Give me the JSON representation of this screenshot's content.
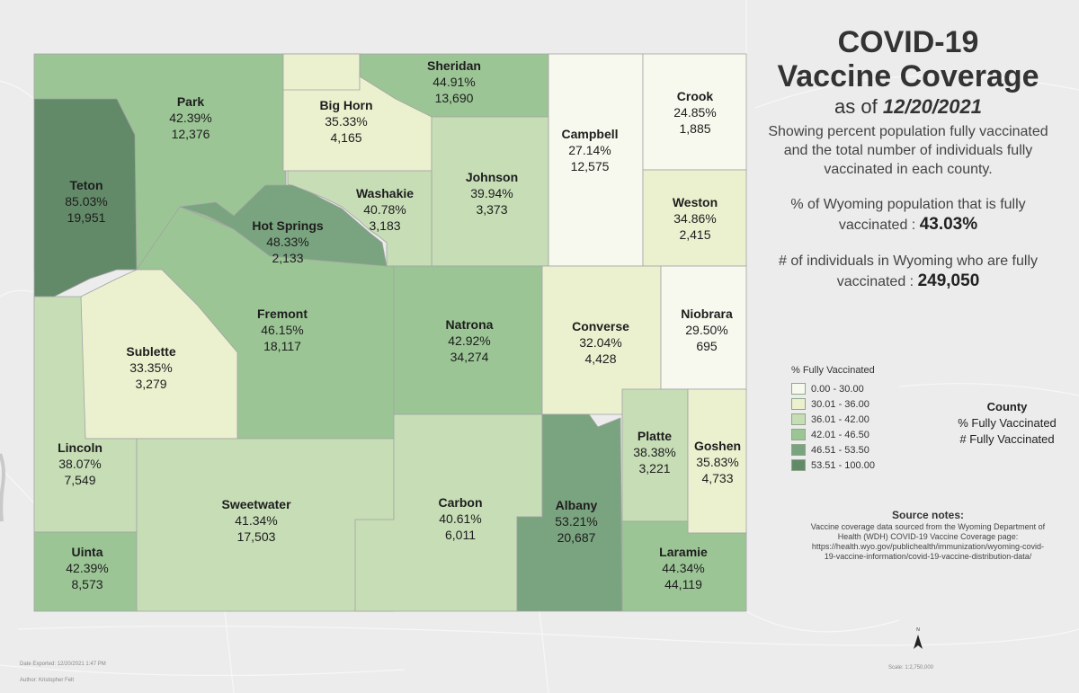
{
  "title": "COVID-19\nVaccine Coverage",
  "as_of_prefix": "as of",
  "as_of_date": "12/20/2021",
  "description": "Showing percent population fully vaccinated and the total number of individuals fully vaccinated in each county.",
  "stat_pct_label": "% of Wyoming population that is fully vaccinated :",
  "stat_pct_value": "43.03%",
  "stat_count_label": "# of individuals in Wyoming who are fully vaccinated :",
  "stat_count_value": "249,050",
  "legend": {
    "title": "% Fully Vaccinated",
    "classes": [
      {
        "label": "0.00 - 30.00",
        "color": "#f8f9ee"
      },
      {
        "label": "30.01 - 36.00",
        "color": "#ebf1cf"
      },
      {
        "label": "36.01 - 42.00",
        "color": "#c6ddb6"
      },
      {
        "label": "42.01 - 46.50",
        "color": "#9cc596"
      },
      {
        "label": "46.51 - 53.50",
        "color": "#7aa37f"
      },
      {
        "label": "53.51 - 100.00",
        "color": "#628a69"
      }
    ]
  },
  "county_key": {
    "line1": "County",
    "line2": "% Fully Vaccinated",
    "line3": "# Fully Vaccinated"
  },
  "source": {
    "title": "Source notes:",
    "text": "Vaccine coverage data sourced from the Wyoming Department of Health (WDH) COVID-19 Vaccine Coverage page: https://health.wyo.gov/publichealth/immunization/wyoming-covid-19-vaccine-information/covid-19-vaccine-distribution-data/"
  },
  "footer": {
    "date_exported": "Date Exported: 12/20/2021 1:47 PM",
    "author": "Author: Kristopher Felt",
    "scale": "Scale: 1:2,750,000",
    "north": "N"
  },
  "counties": [
    {
      "id": "park",
      "name": "Park",
      "pct": "42.39%",
      "count": "12,376",
      "color": "#9cc596"
    },
    {
      "id": "big-horn",
      "name": "Big Horn",
      "pct": "35.33%",
      "count": "4,165",
      "color": "#ebf1cf"
    },
    {
      "id": "sheridan",
      "name": "Sheridan",
      "pct": "44.91%",
      "count": "13,690",
      "color": "#9cc596"
    },
    {
      "id": "campbell",
      "name": "Campbell",
      "pct": "27.14%",
      "count": "12,575",
      "color": "#f8f9ee"
    },
    {
      "id": "crook",
      "name": "Crook",
      "pct": "24.85%",
      "count": "1,885",
      "color": "#f8f9ee"
    },
    {
      "id": "teton",
      "name": "Teton",
      "pct": "85.03%",
      "count": "19,951",
      "color": "#628a69"
    },
    {
      "id": "johnson",
      "name": "Johnson",
      "pct": "39.94%",
      "count": "3,373",
      "color": "#c6ddb6"
    },
    {
      "id": "washakie",
      "name": "Washakie",
      "pct": "40.78%",
      "count": "3,183",
      "color": "#c6ddb6"
    },
    {
      "id": "hot-springs",
      "name": "Hot Springs",
      "pct": "48.33%",
      "count": "2,133",
      "color": "#7aa37f"
    },
    {
      "id": "weston",
      "name": "Weston",
      "pct": "34.86%",
      "count": "2,415",
      "color": "#ebf1cf"
    },
    {
      "id": "fremont",
      "name": "Fremont",
      "pct": "46.15%",
      "count": "18,117",
      "color": "#9cc596"
    },
    {
      "id": "natrona",
      "name": "Natrona",
      "pct": "42.92%",
      "count": "34,274",
      "color": "#9cc596"
    },
    {
      "id": "converse",
      "name": "Converse",
      "pct": "32.04%",
      "count": "4,428",
      "color": "#ebf1cf"
    },
    {
      "id": "niobrara",
      "name": "Niobrara",
      "pct": "29.50%",
      "count": "695",
      "color": "#f8f9ee"
    },
    {
      "id": "sublette",
      "name": "Sublette",
      "pct": "33.35%",
      "count": "3,279",
      "color": "#ebf1cf"
    },
    {
      "id": "lincoln",
      "name": "Lincoln",
      "pct": "38.07%",
      "count": "7,549",
      "color": "#c6ddb6"
    },
    {
      "id": "sweetwater",
      "name": "Sweetwater",
      "pct": "41.34%",
      "count": "17,503",
      "color": "#c6ddb6"
    },
    {
      "id": "carbon",
      "name": "Carbon",
      "pct": "40.61%",
      "count": "6,011",
      "color": "#c6ddb6"
    },
    {
      "id": "albany",
      "name": "Albany",
      "pct": "53.21%",
      "count": "20,687",
      "color": "#7aa37f"
    },
    {
      "id": "platte",
      "name": "Platte",
      "pct": "38.38%",
      "count": "3,221",
      "color": "#c6ddb6"
    },
    {
      "id": "goshen",
      "name": "Goshen",
      "pct": "35.83%",
      "count": "4,733",
      "color": "#ebf1cf"
    },
    {
      "id": "uinta",
      "name": "Uinta",
      "pct": "42.39%",
      "count": "8,573",
      "color": "#9cc596"
    },
    {
      "id": "laramie",
      "name": "Laramie",
      "pct": "44.34%",
      "count": "44,119",
      "color": "#9cc596"
    }
  ]
}
